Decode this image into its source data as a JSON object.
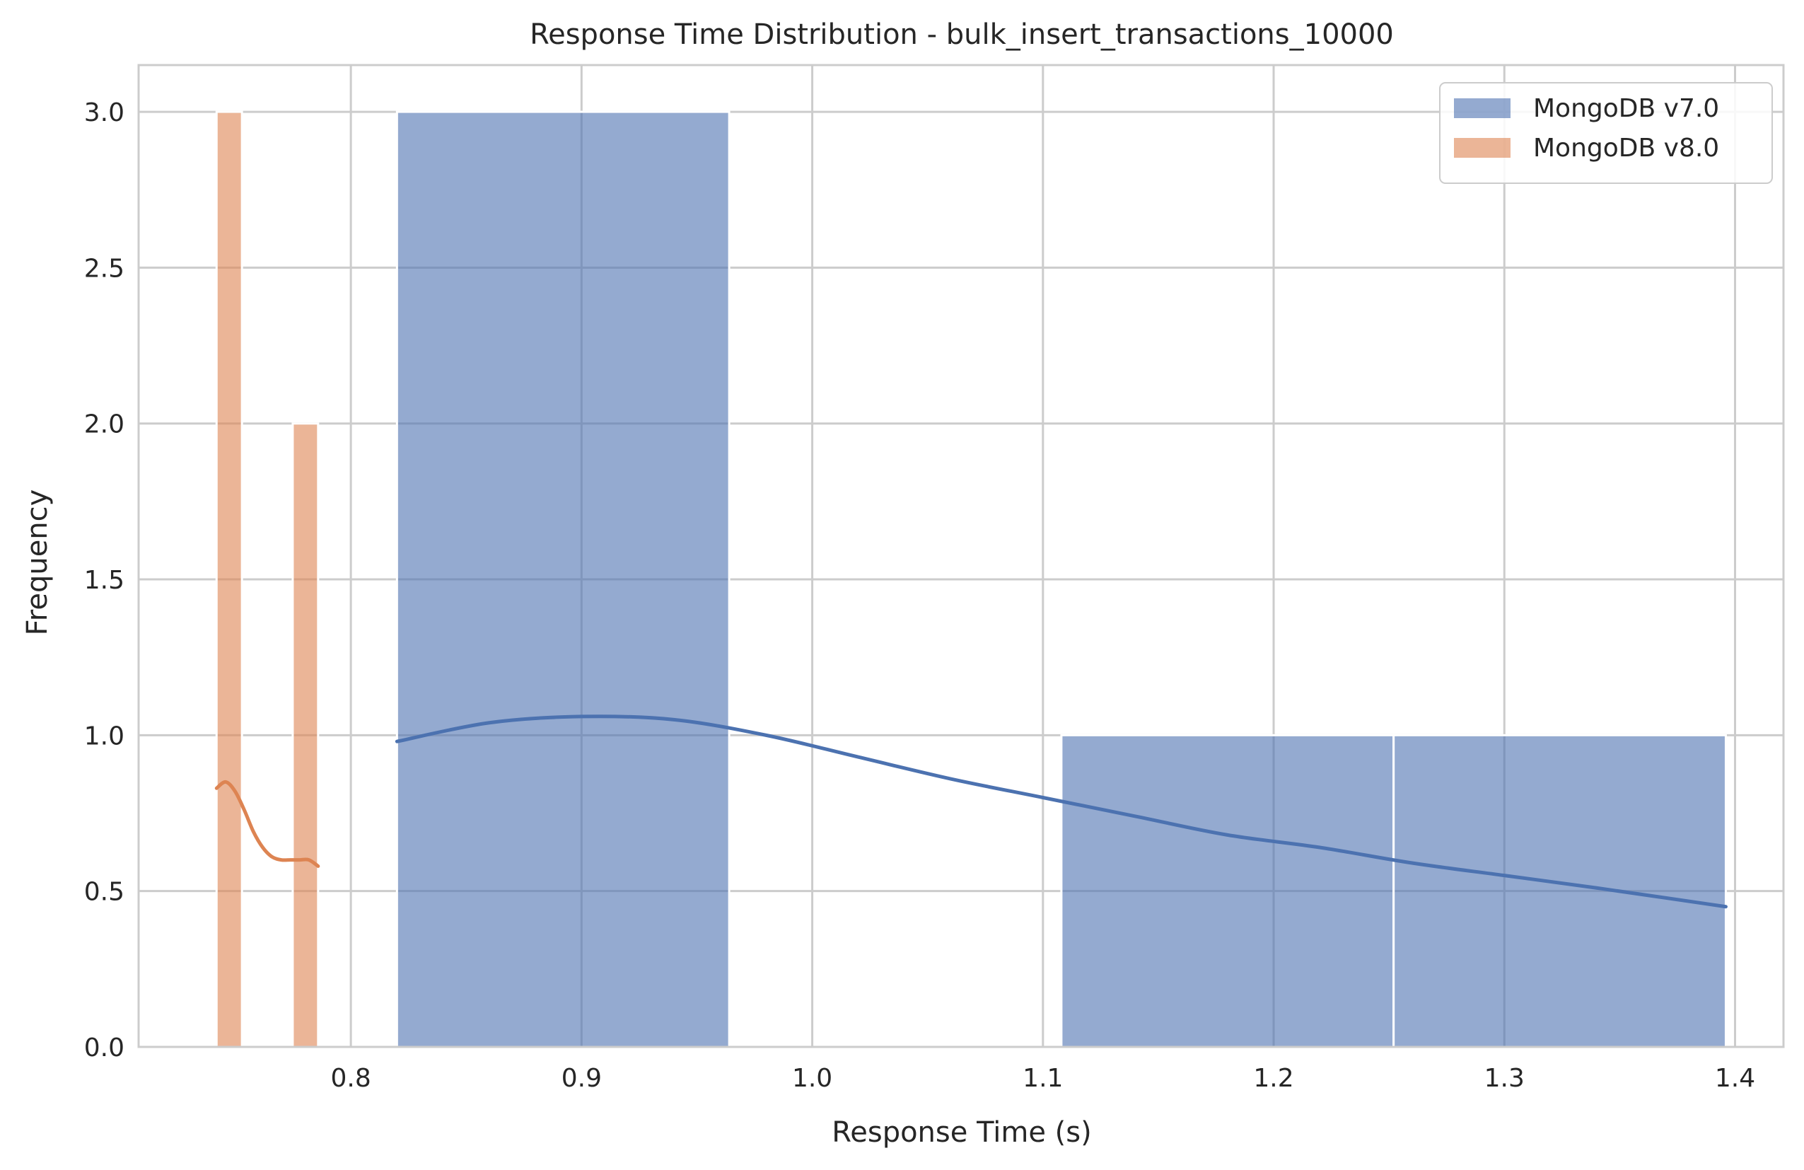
{
  "chart_data": {
    "type": "histogram",
    "title": "Response Time Distribution - bulk_insert_transactions_10000",
    "xlabel": "Response Time (s)",
    "ylabel": "Frequency",
    "xlim": [
      0.708,
      1.421
    ],
    "ylim": [
      0,
      3.15
    ],
    "xticks": [
      "0.8",
      "0.9",
      "1.0",
      "1.1",
      "1.2",
      "1.3",
      "1.4"
    ],
    "xtick_values": [
      0.8,
      0.9,
      1.0,
      1.1,
      1.2,
      1.3,
      1.4
    ],
    "yticks": [
      "0.0",
      "0.5",
      "1.0",
      "1.5",
      "2.0",
      "2.5",
      "3.0"
    ],
    "ytick_values": [
      0,
      0.5,
      1.0,
      1.5,
      2.0,
      2.5,
      3.0
    ],
    "grid": true,
    "legend_position": "top-right",
    "series": [
      {
        "name": "MongoDB v7.0",
        "color": "#4c72b0",
        "bins": [
          {
            "x0": 0.82,
            "x1": 0.964,
            "count": 3
          },
          {
            "x0": 0.964,
            "x1": 1.108,
            "count": 0
          },
          {
            "x0": 1.108,
            "x1": 1.252,
            "count": 1
          },
          {
            "x0": 1.252,
            "x1": 1.396,
            "count": 1
          }
        ],
        "kde": {
          "x": [
            0.82,
            0.86,
            0.9,
            0.94,
            0.98,
            1.02,
            1.06,
            1.1,
            1.14,
            1.18,
            1.22,
            1.26,
            1.3,
            1.34,
            1.396
          ],
          "y": [
            0.98,
            1.04,
            1.06,
            1.05,
            1.0,
            0.93,
            0.86,
            0.8,
            0.74,
            0.68,
            0.64,
            0.59,
            0.55,
            0.51,
            0.45
          ]
        }
      },
      {
        "name": "MongoDB v8.0",
        "color": "#dd8452",
        "bins": [
          {
            "x0": 0.7418,
            "x1": 0.7528,
            "count": 3
          },
          {
            "x0": 0.7528,
            "x1": 0.7638,
            "count": 0
          },
          {
            "x0": 0.7638,
            "x1": 0.7748,
            "count": 0
          },
          {
            "x0": 0.7748,
            "x1": 0.7858,
            "count": 2
          }
        ],
        "kde": {
          "x": [
            0.7418,
            0.7458,
            0.7498,
            0.7538,
            0.7578,
            0.7618,
            0.7658,
            0.7698,
            0.7738,
            0.7778,
            0.7818,
            0.7858
          ],
          "y": [
            0.83,
            0.85,
            0.82,
            0.76,
            0.69,
            0.64,
            0.61,
            0.6,
            0.6,
            0.6,
            0.6,
            0.58
          ]
        }
      }
    ]
  }
}
